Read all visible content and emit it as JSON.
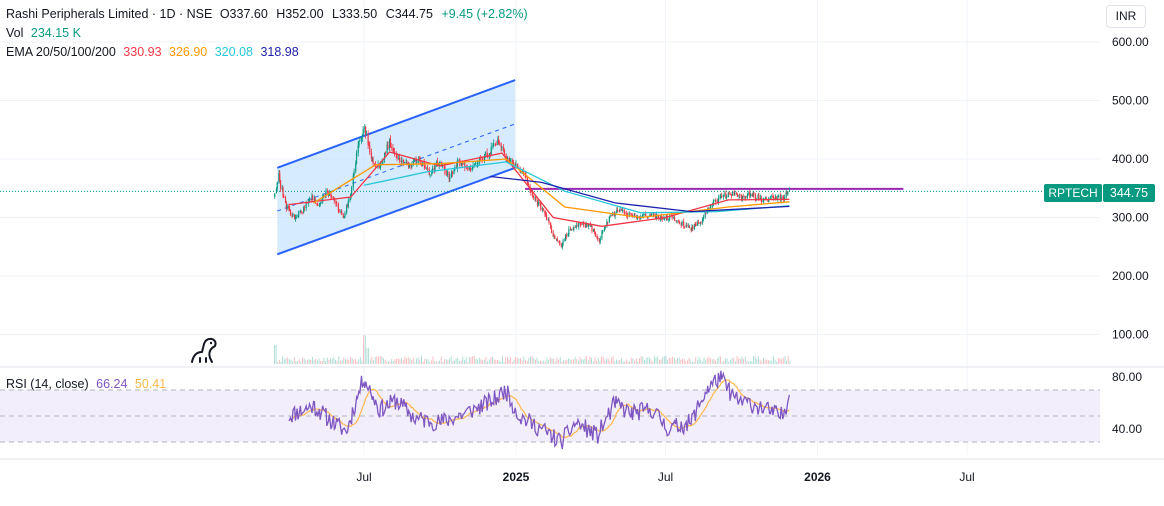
{
  "header": {
    "title": "Rashi Peripherals Limited · 1D · NSE",
    "ohlc": [
      {
        "key": "O",
        "value": "337.60"
      },
      {
        "key": "H",
        "value": "352.00"
      },
      {
        "key": "L",
        "value": "333.50"
      },
      {
        "key": "C",
        "value": "344.75"
      }
    ],
    "change": "+9.45 (+2.82%)",
    "change_color": "#089981"
  },
  "volume": {
    "label": "Vol",
    "value": "234.15 K",
    "color": "#089981"
  },
  "ema": {
    "label": "EMA 20/50/100/200",
    "values": [
      {
        "value": "330.93",
        "color": "#f23645"
      },
      {
        "value": "326.90",
        "color": "#ff9800"
      },
      {
        "value": "320.08",
        "color": "#26c6da"
      },
      {
        "value": "318.98",
        "color": "#1e22aa"
      }
    ]
  },
  "rsi": {
    "label": "RSI (14, close)",
    "value": "66.24",
    "value_color": "#7e57c2",
    "ma_value": "50.41",
    "ma_color": "#ffb74d",
    "ticks": [
      "80.00",
      "40.00"
    ]
  },
  "currency": "INR",
  "last_price": {
    "symbol": "RPTECH",
    "value": "344.75",
    "symbol_color": "#089981",
    "price_color": "#089981"
  },
  "logo_icon": "tradingview-dino-icon",
  "chart_data": {
    "type": "candlestick",
    "price_axis": {
      "ticks": [
        100,
        200,
        300,
        400,
        500,
        600
      ],
      "labels": [
        "100.00",
        "200.00",
        "300.00",
        "400.00",
        "500.00",
        "600.00"
      ]
    },
    "time_axis": {
      "labels": [
        "Jul",
        "2025",
        "Jul",
        "2026",
        "Jul"
      ]
    },
    "close_path": [
      [
        "2024-03-14",
        335
      ],
      [
        "2024-03-20",
        370
      ],
      [
        "2024-03-28",
        322
      ],
      [
        "2024-04-08",
        300
      ],
      [
        "2024-04-18",
        312
      ],
      [
        "2024-04-28",
        335
      ],
      [
        "2024-05-08",
        320
      ],
      [
        "2024-05-18",
        345
      ],
      [
        "2024-05-28",
        322
      ],
      [
        "2024-06-06",
        300
      ],
      [
        "2024-06-14",
        330
      ],
      [
        "2024-06-24",
        420
      ],
      [
        "2024-07-02",
        455
      ],
      [
        "2024-07-10",
        400
      ],
      [
        "2024-07-20",
        385
      ],
      [
        "2024-08-01",
        430
      ],
      [
        "2024-08-12",
        400
      ],
      [
        "2024-08-24",
        390
      ],
      [
        "2024-09-05",
        400
      ],
      [
        "2024-09-18",
        375
      ],
      [
        "2024-09-30",
        395
      ],
      [
        "2024-10-12",
        370
      ],
      [
        "2024-10-24",
        395
      ],
      [
        "2024-11-05",
        380
      ],
      [
        "2024-11-18",
        400
      ],
      [
        "2024-11-30",
        410
      ],
      [
        "2024-12-10",
        430
      ],
      [
        "2024-12-20",
        405
      ],
      [
        "2024-12-31",
        390
      ],
      [
        "2025-01-12",
        370
      ],
      [
        "2025-01-24",
        330
      ],
      [
        "2025-02-05",
        310
      ],
      [
        "2025-02-15",
        270
      ],
      [
        "2025-02-25",
        252
      ],
      [
        "2025-03-08",
        280
      ],
      [
        "2025-03-20",
        290
      ],
      [
        "2025-04-01",
        285
      ],
      [
        "2025-04-12",
        262
      ],
      [
        "2025-04-24",
        300
      ],
      [
        "2025-05-06",
        312
      ],
      [
        "2025-05-18",
        305
      ],
      [
        "2025-05-30",
        300
      ],
      [
        "2025-06-12",
        305
      ],
      [
        "2025-06-25",
        298
      ],
      [
        "2025-07-08",
        300
      ],
      [
        "2025-07-20",
        290
      ],
      [
        "2025-08-01",
        282
      ],
      [
        "2025-08-12",
        290
      ],
      [
        "2025-08-24",
        320
      ],
      [
        "2025-09-05",
        335
      ],
      [
        "2025-09-18",
        340
      ],
      [
        "2025-10-01",
        335
      ],
      [
        "2025-10-14",
        340
      ],
      [
        "2025-10-27",
        328
      ],
      [
        "2025-11-08",
        335
      ],
      [
        "2025-11-20",
        333
      ],
      [
        "2025-11-28",
        344.75
      ]
    ],
    "ema_series": [
      {
        "name": "EMA 20",
        "color": "#f23645",
        "points": [
          [
            "2024-04-01",
            322
          ],
          [
            "2024-06-15",
            335
          ],
          [
            "2024-08-01",
            412
          ],
          [
            "2024-10-01",
            388
          ],
          [
            "2024-12-15",
            410
          ],
          [
            "2025-02-15",
            300
          ],
          [
            "2025-04-15",
            285
          ],
          [
            "2025-07-01",
            300
          ],
          [
            "2025-09-15",
            330
          ],
          [
            "2025-11-28",
            330.93
          ]
        ]
      },
      {
        "name": "EMA 50",
        "color": "#ff9800",
        "points": [
          [
            "2024-05-01",
            325
          ],
          [
            "2024-07-15",
            390
          ],
          [
            "2024-10-01",
            392
          ],
          [
            "2024-12-20",
            400
          ],
          [
            "2025-03-01",
            318
          ],
          [
            "2025-06-01",
            300
          ],
          [
            "2025-09-15",
            318
          ],
          [
            "2025-11-28",
            326.9
          ]
        ]
      },
      {
        "name": "EMA 100",
        "color": "#26c6da",
        "points": [
          [
            "2024-07-01",
            355
          ],
          [
            "2024-09-15",
            378
          ],
          [
            "2024-12-20",
            395
          ],
          [
            "2025-03-01",
            345
          ],
          [
            "2025-06-01",
            308
          ],
          [
            "2025-09-01",
            310
          ],
          [
            "2025-11-28",
            320.08
          ]
        ]
      },
      {
        "name": "EMA 200",
        "color": "#1e22aa",
        "points": [
          [
            "2024-12-01",
            370
          ],
          [
            "2025-02-01",
            360
          ],
          [
            "2025-05-01",
            325
          ],
          [
            "2025-08-01",
            310
          ],
          [
            "2025-11-28",
            318.98
          ]
        ]
      }
    ],
    "rsi_path": [
      [
        "2024-04-01",
        50
      ],
      [
        "2024-05-01",
        58
      ],
      [
        "2024-05-25",
        45
      ],
      [
        "2024-06-10",
        38
      ],
      [
        "2024-07-01",
        80
      ],
      [
        "2024-07-20",
        55
      ],
      [
        "2024-08-10",
        62
      ],
      [
        "2024-09-01",
        48
      ],
      [
        "2024-10-01",
        45
      ],
      [
        "2024-11-01",
        52
      ],
      [
        "2024-12-05",
        62
      ],
      [
        "2024-12-20",
        70
      ],
      [
        "2025-01-05",
        50
      ],
      [
        "2025-02-01",
        40
      ],
      [
        "2025-02-25",
        30
      ],
      [
        "2025-03-15",
        45
      ],
      [
        "2025-04-10",
        35
      ],
      [
        "2025-05-01",
        60
      ],
      [
        "2025-05-20",
        52
      ],
      [
        "2025-06-15",
        55
      ],
      [
        "2025-07-05",
        40
      ],
      [
        "2025-08-01",
        45
      ],
      [
        "2025-08-20",
        70
      ],
      [
        "2025-09-05",
        80
      ],
      [
        "2025-09-25",
        62
      ],
      [
        "2025-10-20",
        58
      ],
      [
        "2025-11-10",
        52
      ],
      [
        "2025-11-20",
        50
      ],
      [
        "2025-11-28",
        66.24
      ]
    ],
    "rsi_levels": {
      "upper": 70,
      "middle": 50,
      "lower": 30
    },
    "drawings": {
      "channel": {
        "upper": [
          [
            "2024-03-18",
            385
          ],
          [
            "2024-12-31",
            535
          ]
        ],
        "lower": [
          [
            "2024-03-18",
            237
          ],
          [
            "2024-12-31",
            385
          ]
        ],
        "fill": "#bbdefb"
      },
      "resistance": {
        "price": 349,
        "from": "2025-01-12",
        "to": "2026-04-15",
        "color": "#9c27b0"
      }
    },
    "volume_spikes": [
      [
        "2024-07-01",
        0.9
      ],
      [
        "2024-07-05",
        0.5
      ],
      [
        "2024-03-14",
        0.6
      ]
    ]
  }
}
